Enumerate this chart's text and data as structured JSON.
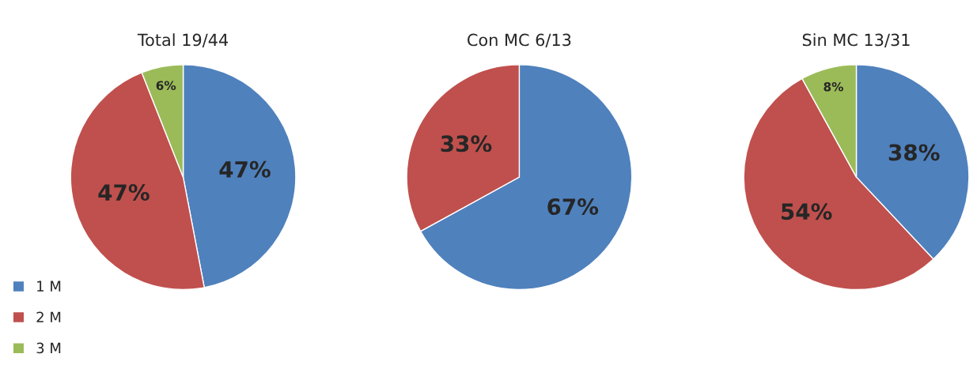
{
  "chart_data": [
    {
      "type": "pie",
      "title": "Total 19/44",
      "categories": [
        "1 M",
        "2 M",
        "3 M"
      ],
      "values": [
        47,
        47,
        6
      ],
      "colors": [
        "#4f81bd",
        "#c0504d",
        "#9bbb59"
      ],
      "value_labels": [
        "47%",
        "47%",
        "6%"
      ],
      "legend": "bottom left"
    },
    {
      "type": "pie",
      "title": "Con MC 6/13",
      "categories": [
        null,
        null
      ],
      "values": [
        67,
        33
      ],
      "colors": [
        "#4f81bd",
        "#c0504d"
      ],
      "value_labels": [
        "67%",
        "33%"
      ]
    },
    {
      "type": "pie",
      "title": "Sin MC 13/31",
      "categories": [
        null,
        null,
        null
      ],
      "values": [
        38,
        54,
        8
      ],
      "colors": [
        "#4f81bd",
        "#c0504d",
        "#9bbb59"
      ],
      "value_labels": [
        "38%",
        "54%",
        "8%"
      ]
    }
  ]
}
